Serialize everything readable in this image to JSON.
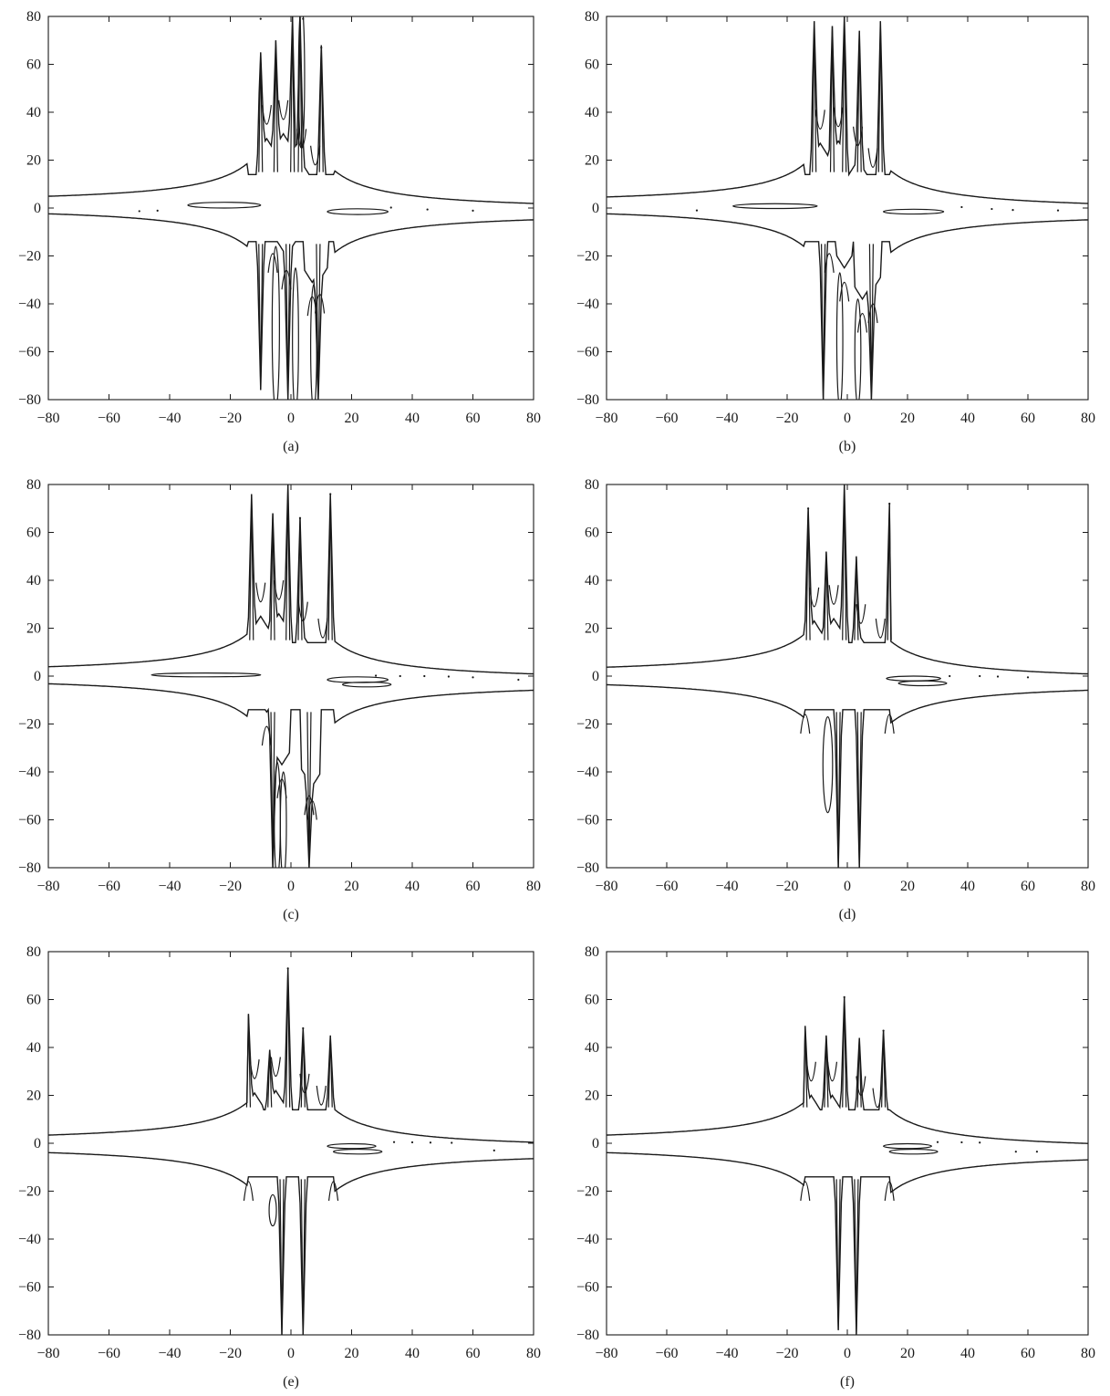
{
  "chart_data": [
    {
      "panel_label": "(a)",
      "type": "scatter",
      "xlim": [
        -80,
        80
      ],
      "ylim": [
        -80,
        80
      ],
      "xticks": [
        -80,
        -60,
        -40,
        -20,
        0,
        20,
        40,
        60,
        80
      ],
      "yticks": [
        -80,
        -60,
        -40,
        -20,
        0,
        20,
        40,
        60,
        80
      ],
      "grid": false,
      "color": "#1a1a1a",
      "upper_curve": {
        "peaks": [
          [
            -10,
            65
          ],
          [
            -5,
            70
          ],
          [
            0.5,
            80
          ],
          [
            3,
            80
          ],
          [
            10,
            68
          ]
        ],
        "valleys": [
          [
            -8,
            29
          ],
          [
            -2.5,
            31
          ],
          [
            3.5,
            19
          ],
          [
            8,
            12
          ]
        ],
        "tail_left": 1.5,
        "tail_right": -1.5
      },
      "lower_curve": {
        "peaks": [
          [
            -10,
            -76
          ],
          [
            -1,
            -80
          ],
          [
            9,
            -80
          ]
        ],
        "valleys": [
          [
            -6,
            -13
          ],
          [
            -1.5,
            -20
          ],
          [
            7,
            -31
          ],
          [
            9.5,
            -30
          ]
        ],
        "tail_left": 1.0,
        "tail_right": -1.5
      },
      "loops": [
        [
          -22,
          1.2,
          12,
          1.2
        ],
        [
          22,
          -1.5,
          10,
          1.2
        ],
        [
          -5,
          -50,
          1.2,
          34
        ],
        [
          1.5,
          -55,
          1.0,
          30
        ],
        [
          7.5,
          -58,
          1.0,
          26
        ],
        [
          3.5,
          55,
          1.0,
          30
        ]
      ],
      "scatter_points": [
        [
          -50,
          -1.3
        ],
        [
          -44,
          -1.1
        ],
        [
          33,
          0.2
        ],
        [
          45,
          -0.6
        ],
        [
          60,
          -1.1
        ],
        [
          -10,
          79
        ],
        [
          4,
          79
        ],
        [
          10,
          67
        ]
      ]
    },
    {
      "panel_label": "(b)",
      "type": "scatter",
      "xlim": [
        -80,
        80
      ],
      "ylim": [
        -80,
        80
      ],
      "xticks": [
        -80,
        -60,
        -40,
        -20,
        0,
        20,
        40,
        60,
        80
      ],
      "yticks": [
        -80,
        -60,
        -40,
        -20,
        0,
        20,
        40,
        60,
        80
      ],
      "grid": false,
      "color": "#1a1a1a",
      "upper_curve": {
        "peaks": [
          [
            -11,
            78
          ],
          [
            -5,
            76
          ],
          [
            -1,
            80
          ],
          [
            4,
            74
          ],
          [
            11,
            78
          ]
        ],
        "valleys": [
          [
            -9,
            27
          ],
          [
            -3,
            28
          ],
          [
            3.5,
            20
          ],
          [
            8.5,
            11
          ]
        ],
        "tail_left": 1.2,
        "tail_right": -1.5
      },
      "lower_curve": {
        "peaks": [
          [
            -8,
            -80
          ],
          [
            8,
            -80
          ]
        ],
        "valleys": [
          [
            -6,
            -13
          ],
          [
            -1,
            -25
          ],
          [
            5,
            -38
          ],
          [
            8.5,
            -34
          ]
        ],
        "tail_left": 1.0,
        "tail_right": -1.5
      },
      "loops": [
        [
          -24,
          0.8,
          14,
          1.0
        ],
        [
          22,
          -1.5,
          10,
          1.0
        ],
        [
          -2.5,
          -55,
          1.0,
          28
        ],
        [
          3.5,
          -60,
          1.0,
          22
        ]
      ],
      "scatter_points": [
        [
          -50,
          -1.0
        ],
        [
          38,
          0.4
        ],
        [
          48,
          -0.4
        ],
        [
          55,
          -0.8
        ],
        [
          70,
          -1.0
        ]
      ]
    },
    {
      "panel_label": "(c)",
      "type": "scatter",
      "xlim": [
        -80,
        80
      ],
      "ylim": [
        -80,
        80
      ],
      "xticks": [
        -80,
        -60,
        -40,
        -20,
        0,
        20,
        40,
        60,
        80
      ],
      "yticks": [
        -80,
        -60,
        -40,
        -20,
        0,
        20,
        40,
        60,
        80
      ],
      "grid": false,
      "color": "#1a1a1a",
      "upper_curve": {
        "peaks": [
          [
            -13,
            76
          ],
          [
            -6,
            68
          ],
          [
            -1,
            80
          ],
          [
            3,
            66
          ],
          [
            13,
            76
          ]
        ],
        "valleys": [
          [
            -10,
            25
          ],
          [
            -4,
            26
          ],
          [
            4,
            17
          ],
          [
            10.5,
            10
          ]
        ],
        "tail_left": 0.5,
        "tail_right": -2.5
      },
      "lower_curve": {
        "peaks": [
          [
            -6,
            -80
          ],
          [
            6,
            -80
          ]
        ],
        "valleys": [
          [
            -8,
            -15
          ],
          [
            -3,
            -37
          ],
          [
            6,
            -44
          ],
          [
            7,
            -46
          ]
        ],
        "tail_left": 0.2,
        "tail_right": -2.5
      },
      "loops": [
        [
          -28,
          0.5,
          18,
          0.8
        ],
        [
          22,
          -1.5,
          10,
          1.2
        ],
        [
          25,
          -3.5,
          8,
          1.0
        ],
        [
          -4.5,
          -60,
          1.0,
          24
        ],
        [
          -2.5,
          -62,
          1.0,
          22
        ]
      ],
      "scatter_points": [
        [
          28,
          0.2
        ],
        [
          36,
          0.0
        ],
        [
          44,
          0.0
        ],
        [
          52,
          -0.2
        ],
        [
          60,
          -0.5
        ],
        [
          75,
          -1.5
        ],
        [
          3,
          66
        ],
        [
          13,
          76
        ]
      ]
    },
    {
      "panel_label": "(d)",
      "type": "scatter",
      "xlim": [
        -80,
        80
      ],
      "ylim": [
        -80,
        80
      ],
      "xticks": [
        -80,
        -60,
        -40,
        -20,
        0,
        20,
        40,
        60,
        80
      ],
      "yticks": [
        -80,
        -60,
        -40,
        -20,
        0,
        20,
        40,
        60,
        80
      ],
      "grid": false,
      "color": "#1a1a1a",
      "upper_curve": {
        "peaks": [
          [
            -13,
            70
          ],
          [
            -7,
            52
          ],
          [
            -1,
            80
          ],
          [
            3,
            50
          ],
          [
            14,
            72
          ]
        ],
        "valleys": [
          [
            -11,
            23
          ],
          [
            -4.5,
            24
          ],
          [
            4.5,
            16
          ],
          [
            11,
            10
          ]
        ],
        "tail_left": 0.3,
        "tail_right": -2.5
      },
      "lower_curve": {
        "peaks": [
          [
            -3,
            -80
          ],
          [
            4,
            -80
          ]
        ],
        "valleys": [
          [
            -14,
            -10
          ],
          [
            14,
            -10
          ]
        ],
        "tail_left": -0.2,
        "tail_right": -2.5
      },
      "loops": [
        [
          -6.5,
          -37,
          1.6,
          20
        ],
        [
          22,
          -1.0,
          9,
          1.0
        ],
        [
          25,
          -3.0,
          8,
          1.0
        ]
      ],
      "scatter_points": [
        [
          34,
          0.0
        ],
        [
          44,
          0.0
        ],
        [
          50,
          -0.2
        ],
        [
          60,
          -0.5
        ],
        [
          14,
          72
        ],
        [
          -13,
          70
        ]
      ]
    },
    {
      "panel_label": "(e)",
      "type": "scatter",
      "xlim": [
        -80,
        80
      ],
      "ylim": [
        -80,
        80
      ],
      "xticks": [
        -80,
        -60,
        -40,
        -20,
        0,
        20,
        40,
        60,
        80
      ],
      "yticks": [
        -80,
        -60,
        -40,
        -20,
        0,
        20,
        40,
        60,
        80
      ],
      "grid": false,
      "color": "#1a1a1a",
      "upper_curve": {
        "peaks": [
          [
            -14,
            54
          ],
          [
            -7,
            39
          ],
          [
            -1,
            73
          ],
          [
            4,
            48
          ],
          [
            13,
            45
          ]
        ],
        "valleys": [
          [
            -12,
            21
          ],
          [
            -5,
            22
          ],
          [
            4.5,
            15
          ],
          [
            10,
            10
          ]
        ],
        "tail_left": 0.0,
        "tail_right": -3.0
      },
      "lower_curve": {
        "peaks": [
          [
            -3,
            -80
          ],
          [
            4,
            -80
          ]
        ],
        "valleys": [
          [
            -14,
            -10
          ],
          [
            14,
            -10
          ]
        ],
        "tail_left": -0.5,
        "tail_right": -3.0
      },
      "loops": [
        [
          -6,
          -28,
          1.2,
          6.5
        ],
        [
          20,
          -1.2,
          8,
          1.0
        ],
        [
          22,
          -3.5,
          8,
          1.0
        ]
      ],
      "scatter_points": [
        [
          34,
          0.5
        ],
        [
          40,
          0.4
        ],
        [
          46,
          0.3
        ],
        [
          53,
          0.2
        ],
        [
          67,
          -3.0
        ],
        [
          -1,
          73
        ],
        [
          4,
          48
        ]
      ]
    },
    {
      "panel_label": "(f)",
      "type": "scatter",
      "xlim": [
        -80,
        80
      ],
      "ylim": [
        -80,
        80
      ],
      "xticks": [
        -80,
        -60,
        -40,
        -20,
        0,
        20,
        40,
        60,
        80
      ],
      "yticks": [
        -80,
        -60,
        -40,
        -20,
        0,
        20,
        40,
        60,
        80
      ],
      "grid": false,
      "color": "#1a1a1a",
      "upper_curve": {
        "peaks": [
          [
            -14,
            49
          ],
          [
            -7,
            45
          ],
          [
            -1,
            61
          ],
          [
            4,
            44
          ],
          [
            12,
            47
          ]
        ],
        "valleys": [
          [
            -12,
            20
          ],
          [
            -5,
            20
          ],
          [
            4.5,
            14
          ],
          [
            10,
            9
          ]
        ],
        "tail_left": 0.0,
        "tail_right": -3.5
      },
      "lower_curve": {
        "peaks": [
          [
            -3,
            -78
          ],
          [
            3,
            -80
          ]
        ],
        "valleys": [
          [
            -14,
            -10
          ],
          [
            14,
            -10
          ]
        ],
        "tail_left": -0.5,
        "tail_right": -3.5
      },
      "loops": [
        [
          20,
          -1.2,
          8,
          1.0
        ],
        [
          22,
          -3.5,
          8,
          1.0
        ]
      ],
      "scatter_points": [
        [
          30,
          0.5
        ],
        [
          38,
          0.4
        ],
        [
          44,
          0.3
        ],
        [
          56,
          -3.5
        ],
        [
          63,
          -3.5
        ],
        [
          -1,
          61
        ],
        [
          12,
          47
        ]
      ]
    }
  ]
}
